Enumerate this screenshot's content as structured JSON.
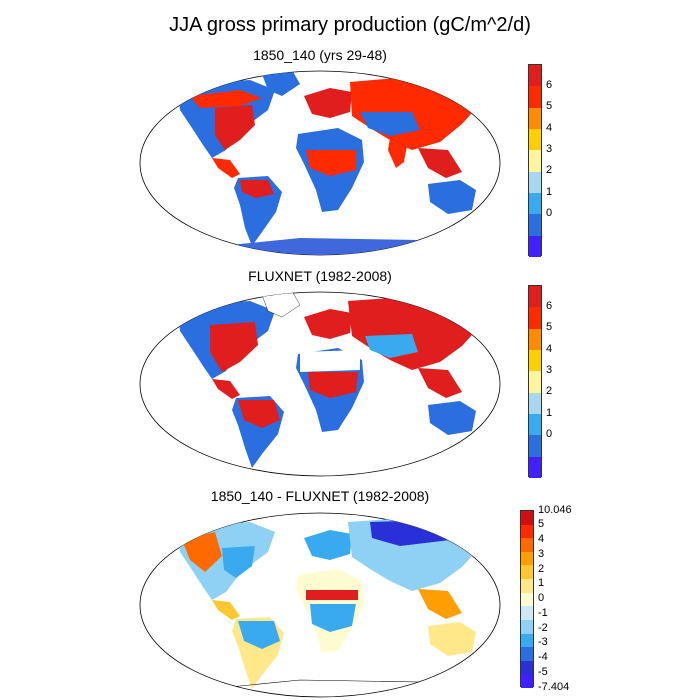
{
  "title": "JJA gross primary production (gC/m^2/d)",
  "panels": [
    {
      "title": "1850_140 (yrs 29-48)",
      "colorbar": {
        "labels": [
          "6",
          "5",
          "4",
          "3",
          "2",
          "1",
          "0"
        ],
        "colors": [
          "#e01e1e",
          "#ff2a00",
          "#ff8c00",
          "#ffd000",
          "#fff4a0",
          "#a8d8f0",
          "#3aaaf0",
          "#2a6ee0",
          "#4020ff"
        ]
      }
    },
    {
      "title": "FLUXNET (1982-2008)",
      "colorbar": {
        "labels": [
          "6",
          "5",
          "4",
          "3",
          "2",
          "1",
          "0"
        ],
        "colors": [
          "#e01e1e",
          "#ff2a00",
          "#ff8c00",
          "#ffd000",
          "#fff4a0",
          "#a8d8f0",
          "#3aaaf0",
          "#2a6ee0",
          "#4020ff"
        ]
      }
    },
    {
      "title": "1850_140 - FLUXNET (1982-2008)",
      "colorbar": {
        "labels": [
          "10.046",
          "5",
          "4",
          "3",
          "2",
          "1",
          "0",
          "-1",
          "-2",
          "-3",
          "-4",
          "-5",
          "-7.404"
        ],
        "colors": [
          "#d01010",
          "#ff2a00",
          "#ff6a00",
          "#ff9e00",
          "#ffc830",
          "#ffe88a",
          "#fffbd0",
          "#cfe8f5",
          "#8fd0f5",
          "#3aaaf0",
          "#2a6ee0",
          "#2a30d8",
          "#4020ff"
        ]
      }
    }
  ],
  "colors": {
    "land_outline": "#000000",
    "ocean": "#ffffff",
    "antarctica_model": "#3e68dc"
  }
}
